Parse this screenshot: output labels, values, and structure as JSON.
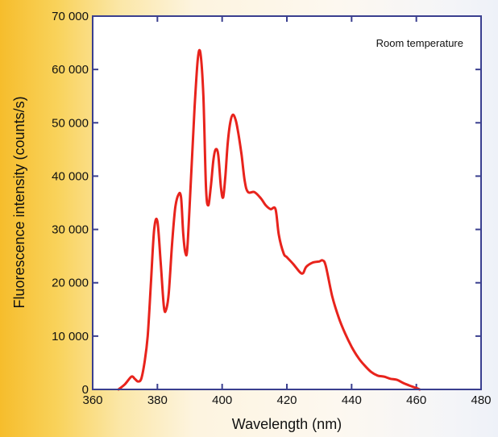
{
  "chart_data": {
    "type": "line",
    "title": "",
    "xlabel": "Wavelength (nm)",
    "ylabel": "Fluorescence intensity (counts/s)",
    "annotation": "Room temperature",
    "xlim": [
      360,
      480
    ],
    "ylim": [
      0,
      70000
    ],
    "x_ticks": [
      360,
      380,
      400,
      420,
      440,
      460,
      480
    ],
    "x_tick_labels": [
      "360",
      "380",
      "400",
      "420",
      "440",
      "460",
      "480"
    ],
    "y_ticks": [
      0,
      10000,
      20000,
      30000,
      40000,
      50000,
      60000,
      70000
    ],
    "y_tick_labels": [
      "0",
      "10 000",
      "20 000",
      "30 000",
      "40 000",
      "50 000",
      "60 000",
      "70 000"
    ],
    "grid": false,
    "legend": "none",
    "series": [
      {
        "color": "#e8231c",
        "x": [
          368,
          370,
          372,
          373,
          374,
          375,
          376,
          377,
          378,
          379,
          380,
          381,
          382,
          382.7,
          383.5,
          384.5,
          385.5,
          386.5,
          387.3,
          388,
          388.7,
          389.3,
          390.5,
          391.5,
          392.5,
          393.3,
          394.2,
          395,
          395.7,
          396.5,
          397.3,
          398,
          398.8,
          399.6,
          400.3,
          401,
          401.7,
          402.5,
          403.3,
          404.2,
          405,
          406,
          407,
          408,
          410,
          412,
          413.5,
          415,
          416.5,
          417.5,
          419,
          420,
          422,
          424,
          425,
          426,
          428,
          430,
          431,
          432,
          434,
          436,
          438,
          440,
          442,
          444,
          446,
          448,
          450,
          452,
          454,
          456,
          458,
          460,
          461
        ],
        "y": [
          0,
          1000,
          2400,
          2000,
          1500,
          2000,
          5000,
          10000,
          20000,
          30000,
          31500,
          24000,
          15500,
          15000,
          18000,
          27000,
          34000,
          36500,
          36000,
          29000,
          25500,
          27000,
          41000,
          53000,
          62000,
          63000,
          55000,
          38000,
          34500,
          38000,
          43000,
          45000,
          44000,
          38000,
          36000,
          40000,
          46000,
          50000,
          51500,
          50500,
          48000,
          44000,
          39000,
          37000,
          37000,
          35800,
          34500,
          33800,
          33800,
          29000,
          25500,
          24800,
          23500,
          22000,
          21800,
          23000,
          23800,
          24000,
          24200,
          23200,
          17500,
          13500,
          10500,
          8000,
          6000,
          4500,
          3300,
          2600,
          2400,
          2000,
          1800,
          1200,
          700,
          250,
          0
        ]
      }
    ]
  }
}
